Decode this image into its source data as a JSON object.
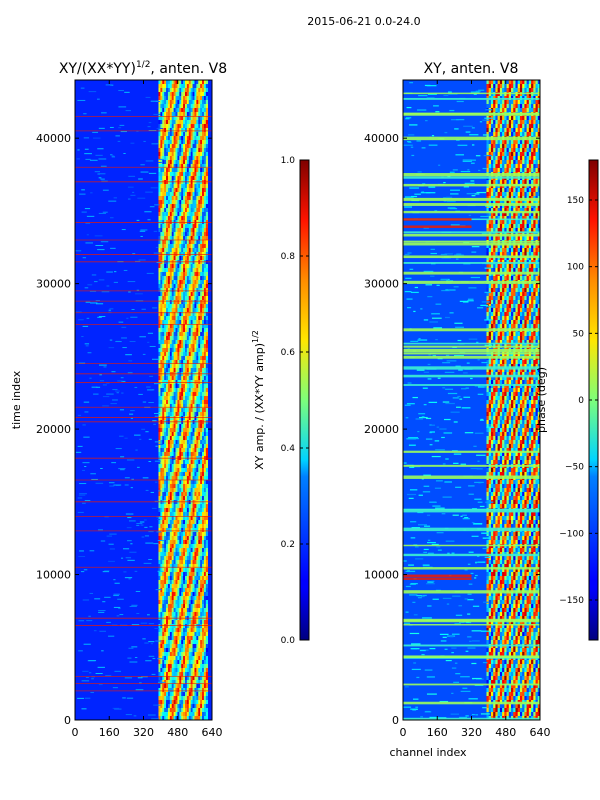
{
  "figure": {
    "suptitle": "2015-06-21 0.0-24.0"
  },
  "chart_data": [
    {
      "type": "heatmap",
      "title": "XY/(XX*YY)^1/2, anten. V8",
      "title_main": "XY/(XX*YY)",
      "title_sup": "1/2",
      "title_tail": ", anten. V8",
      "xlabel": "",
      "ylabel": "time index",
      "xlim": [
        0,
        640
      ],
      "ylim": [
        0,
        44000
      ],
      "xticks": [
        0,
        160,
        320,
        480,
        640
      ],
      "yticks": [
        0,
        10000,
        20000,
        30000,
        40000
      ],
      "active_band": [
        390,
        620
      ],
      "colorbar": {
        "label": "XY amp. / (XX*YY amp)^1/2",
        "label_main": "XY amp. / (XX*YY amp)",
        "label_sup": "1/2",
        "min": 0.0,
        "max": 1.0,
        "ticks": [
          "0.0",
          "0.2",
          "0.4",
          "0.6",
          "0.8",
          "1.0"
        ],
        "tick_values": [
          0.0,
          0.2,
          0.4,
          0.6,
          0.8,
          1.0
        ]
      }
    },
    {
      "type": "heatmap",
      "title": "XY, anten. V8",
      "xlabel": "channel index",
      "ylabel": "",
      "xlim": [
        0,
        640
      ],
      "ylim": [
        0,
        44000
      ],
      "xticks": [
        0,
        160,
        320,
        480,
        640
      ],
      "yticks": [
        0,
        10000,
        20000,
        30000,
        40000
      ],
      "active_band": [
        390,
        640
      ],
      "colorbar": {
        "label": "phase (deg)",
        "min": -180,
        "max": 180,
        "ticks": [
          "−150",
          "−100",
          "−50",
          "0",
          "50",
          "100",
          "150"
        ],
        "tick_values": [
          -150,
          -100,
          -50,
          0,
          50,
          100,
          150
        ]
      }
    }
  ]
}
